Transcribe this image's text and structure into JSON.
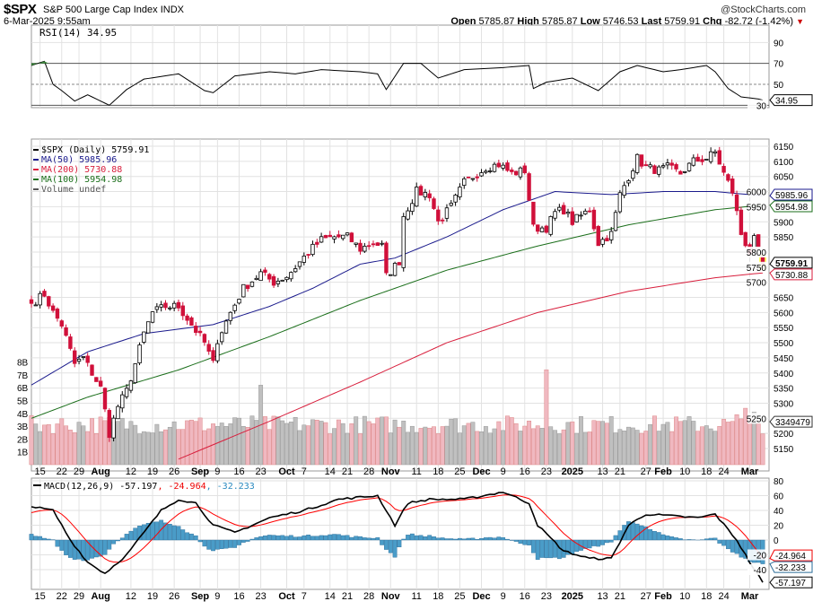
{
  "header": {
    "symbol": "$SPX",
    "name": "S&P 500 Large Cap Index",
    "exchange": "INDX",
    "brand": "@StockCharts.com",
    "datetime": "6-Mar-2025 9:55am",
    "open_label": "Open",
    "open": "5785.87",
    "high_label": "High",
    "high": "5785.87",
    "low_label": "Low",
    "low": "5746.53",
    "last_label": "Last",
    "last": "5759.91",
    "chg_label": "Chg",
    "chg": "-82.72 (-1.42%)",
    "chg_arrow": "▼"
  },
  "chart_data": [
    {
      "type": "line",
      "title": "RSI(14) 34.95",
      "ylim": [
        0,
        100
      ],
      "yticks": [
        90,
        70,
        50,
        30
      ],
      "tag": "34.95",
      "color": "#000000",
      "anchors": [
        [
          0,
          68
        ],
        [
          3,
          72
        ],
        [
          5,
          50
        ],
        [
          7,
          44
        ],
        [
          10,
          34
        ],
        [
          13,
          40
        ],
        [
          18,
          30
        ],
        [
          22,
          45
        ],
        [
          26,
          55
        ],
        [
          34,
          60
        ],
        [
          40,
          44
        ],
        [
          42,
          42
        ],
        [
          47,
          58
        ],
        [
          55,
          62
        ],
        [
          61,
          60
        ],
        [
          67,
          64
        ],
        [
          76,
          62
        ],
        [
          80,
          60
        ],
        [
          82,
          45
        ],
        [
          86,
          70
        ],
        [
          90,
          70
        ],
        [
          94,
          56
        ],
        [
          100,
          64
        ],
        [
          109,
          66
        ],
        [
          115,
          68
        ],
        [
          116,
          46
        ],
        [
          119,
          52
        ],
        [
          125,
          56
        ],
        [
          131,
          44
        ],
        [
          136,
          62
        ],
        [
          140,
          68
        ],
        [
          146,
          62
        ],
        [
          150,
          64
        ],
        [
          156,
          68
        ],
        [
          158,
          62
        ],
        [
          161,
          46
        ],
        [
          164,
          38
        ],
        [
          168,
          36
        ],
        [
          169,
          34.95
        ]
      ]
    },
    {
      "type": "candlestick",
      "title": "$SPX (Daily) 5759.91",
      "ylim": [
        5100,
        6180
      ],
      "yticks": [
        6150,
        6100,
        6050,
        6000,
        5950,
        5900,
        5850,
        5800,
        5750,
        5700,
        5650,
        5600,
        5550,
        5500,
        5450,
        5400,
        5350,
        5300,
        5250,
        5200,
        5150
      ],
      "close_anchors": [
        [
          0,
          5630
        ],
        [
          3,
          5660
        ],
        [
          5,
          5600
        ],
        [
          7,
          5560
        ],
        [
          10,
          5430
        ],
        [
          12,
          5450
        ],
        [
          16,
          5350
        ],
        [
          18,
          5200
        ],
        [
          20,
          5290
        ],
        [
          22,
          5340
        ],
        [
          24,
          5430
        ],
        [
          26,
          5530
        ],
        [
          28,
          5600
        ],
        [
          31,
          5620
        ],
        [
          34,
          5620
        ],
        [
          37,
          5560
        ],
        [
          40,
          5500
        ],
        [
          42,
          5430
        ],
        [
          43,
          5510
        ],
        [
          46,
          5600
        ],
        [
          49,
          5680
        ],
        [
          53,
          5730
        ],
        [
          56,
          5700
        ],
        [
          59,
          5720
        ],
        [
          61,
          5750
        ],
        [
          64,
          5800
        ],
        [
          67,
          5840
        ],
        [
          70,
          5850
        ],
        [
          73,
          5850
        ],
        [
          76,
          5810
        ],
        [
          79,
          5830
        ],
        [
          81,
          5820
        ],
        [
          82,
          5720
        ],
        [
          85,
          5770
        ],
        [
          86,
          5920
        ],
        [
          89,
          6000
        ],
        [
          92,
          5990
        ],
        [
          94,
          5900
        ],
        [
          97,
          5950
        ],
        [
          100,
          6030
        ],
        [
          105,
          6080
        ],
        [
          108,
          6090
        ],
        [
          111,
          6060
        ],
        [
          114,
          6070
        ],
        [
          116,
          5880
        ],
        [
          119,
          5880
        ],
        [
          121,
          5930
        ],
        [
          123,
          5940
        ],
        [
          125,
          5900
        ],
        [
          129,
          5940
        ],
        [
          131,
          5830
        ],
        [
          134,
          5860
        ],
        [
          136,
          5990
        ],
        [
          138,
          6050
        ],
        [
          140,
          6110
        ],
        [
          142,
          6080
        ],
        [
          145,
          6070
        ],
        [
          147,
          6080
        ],
        [
          150,
          6060
        ],
        [
          153,
          6100
        ],
        [
          156,
          6110
        ],
        [
          158,
          6130
        ],
        [
          160,
          6060
        ],
        [
          162,
          6000
        ],
        [
          164,
          5860
        ],
        [
          166,
          5800
        ],
        [
          167,
          5840
        ],
        [
          169,
          5760
        ]
      ],
      "series": [
        {
          "name": "MA(50)",
          "value": "5985.96",
          "color": "#1a1a8c",
          "anchors": [
            [
              0,
              5360
            ],
            [
              13,
              5470
            ],
            [
              26,
              5530
            ],
            [
              42,
              5560
            ],
            [
              55,
              5620
            ],
            [
              65,
              5680
            ],
            [
              76,
              5760
            ],
            [
              84,
              5780
            ],
            [
              96,
              5850
            ],
            [
              109,
              5940
            ],
            [
              121,
              6000
            ],
            [
              134,
              5990
            ],
            [
              146,
              6000
            ],
            [
              158,
              6000
            ],
            [
              169,
              5986
            ]
          ]
        },
        {
          "name": "MA(200)",
          "value": "5730.88",
          "color": "#d81e3c",
          "anchors": [
            [
              34,
              5115
            ],
            [
              55,
              5240
            ],
            [
              76,
              5370
            ],
            [
              96,
              5500
            ],
            [
              117,
              5600
            ],
            [
              138,
              5670
            ],
            [
              158,
              5715
            ],
            [
              169,
              5731
            ]
          ]
        },
        {
          "name": "MA(100)",
          "value": "5954.98",
          "color": "#1a6e1a",
          "anchors": [
            [
              0,
              5250
            ],
            [
              13,
              5320
            ],
            [
              34,
              5410
            ],
            [
              55,
              5520
            ],
            [
              76,
              5640
            ],
            [
              96,
              5740
            ],
            [
              117,
              5820
            ],
            [
              138,
              5890
            ],
            [
              158,
              5940
            ],
            [
              169,
              5955
            ]
          ]
        }
      ],
      "volume": {
        "label": "Volume undef",
        "tag": "3349479",
        "yticks": [
          "8B",
          "7B",
          "6B",
          "5B",
          "4B",
          "3B",
          "2B",
          "1B"
        ],
        "spikes": [
          [
            53,
            6.2
          ],
          [
            119,
            7.4
          ],
          [
            165,
            4.4
          ],
          [
            163,
            3.9
          ],
          [
            167,
            4.1
          ]
        ],
        "typical_billions": 3.2
      },
      "last_tag": "5759.91"
    },
    {
      "type": "line",
      "title": "MACD(12,26,9)",
      "macd": "-57.197",
      "signal": "-24.964",
      "hist": "-32.233",
      "ylim": [
        -65,
        85
      ],
      "yticks": [
        80,
        60,
        40,
        20,
        0,
        -20,
        -40
      ],
      "anchors": [
        [
          0,
          45
        ],
        [
          5,
          40
        ],
        [
          9,
          0
        ],
        [
          13,
          -30
        ],
        [
          17,
          -45
        ],
        [
          22,
          -20
        ],
        [
          30,
          40
        ],
        [
          34,
          55
        ],
        [
          38,
          50
        ],
        [
          42,
          20
        ],
        [
          47,
          10
        ],
        [
          55,
          30
        ],
        [
          63,
          40
        ],
        [
          71,
          55
        ],
        [
          80,
          60
        ],
        [
          84,
          20
        ],
        [
          87,
          50
        ],
        [
          92,
          55
        ],
        [
          100,
          55
        ],
        [
          109,
          65
        ],
        [
          115,
          50
        ],
        [
          117,
          20
        ],
        [
          123,
          -15
        ],
        [
          129,
          -25
        ],
        [
          134,
          -25
        ],
        [
          138,
          20
        ],
        [
          142,
          35
        ],
        [
          154,
          30
        ],
        [
          158,
          35
        ],
        [
          163,
          0
        ],
        [
          166,
          -30
        ],
        [
          169,
          -57
        ]
      ],
      "colors": {
        "macd": "#000000",
        "signal": "#ff0000",
        "hist": "#4a9cc8"
      }
    }
  ],
  "xaxis": {
    "ticks": [
      [
        2,
        "15",
        0
      ],
      [
        7,
        "22",
        0
      ],
      [
        11,
        "29",
        0
      ],
      [
        16,
        "Aug",
        1
      ],
      [
        23,
        "12",
        0
      ],
      [
        28,
        "19",
        0
      ],
      [
        33,
        "26",
        0
      ],
      [
        39,
        "Sep",
        1
      ],
      [
        43,
        "9",
        0
      ],
      [
        48,
        "16",
        0
      ],
      [
        53,
        "23",
        0
      ],
      [
        59,
        "Oct",
        1
      ],
      [
        63,
        "7",
        0
      ],
      [
        69,
        "14",
        0
      ],
      [
        73,
        "21",
        0
      ],
      [
        78,
        "28",
        0
      ],
      [
        83,
        "Nov",
        1
      ],
      [
        89,
        "11",
        0
      ],
      [
        94,
        "18",
        0
      ],
      [
        99,
        "25",
        0
      ],
      [
        104,
        "Dec",
        1
      ],
      [
        109,
        "9",
        0
      ],
      [
        114,
        "16",
        0
      ],
      [
        119,
        "23",
        0
      ],
      [
        125,
        "2025",
        1
      ],
      [
        132,
        "13",
        0
      ],
      [
        136,
        "21",
        0
      ],
      [
        142,
        "27",
        0
      ],
      [
        146,
        "Feb",
        1
      ],
      [
        151,
        "10",
        0
      ],
      [
        156,
        "18",
        0
      ],
      [
        160,
        "24",
        0
      ],
      [
        166,
        "Mar",
        1
      ]
    ]
  }
}
